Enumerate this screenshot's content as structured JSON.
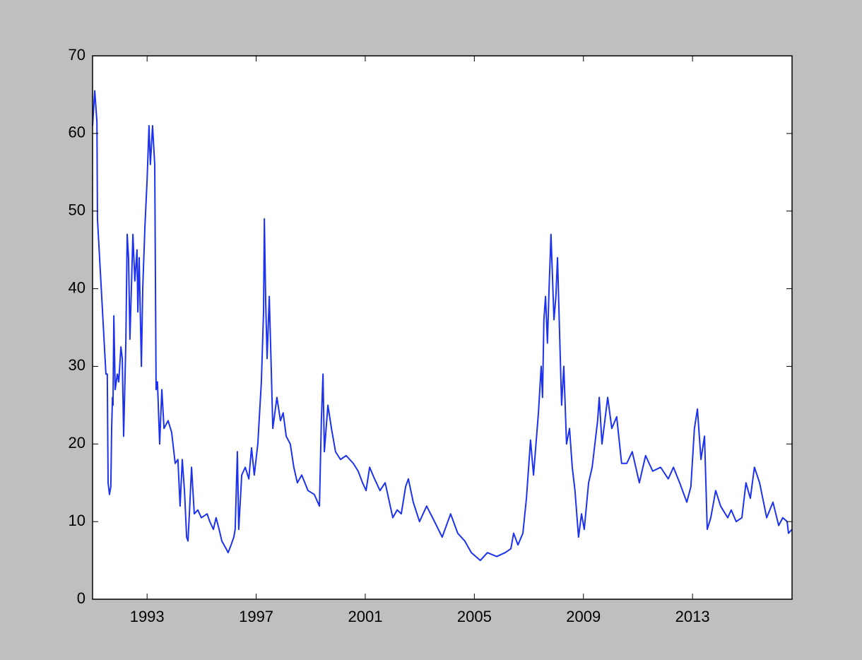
{
  "chart_data": {
    "type": "line",
    "x": [
      1991.0,
      1991.08,
      1991.16,
      1991.18,
      1991.49,
      1991.54,
      1991.57,
      1991.62,
      1991.67,
      1991.7,
      1991.73,
      1991.75,
      1991.78,
      1991.83,
      1991.91,
      1991.96,
      1992.04,
      1992.09,
      1992.14,
      1992.22,
      1992.27,
      1992.32,
      1992.37,
      1992.48,
      1992.55,
      1992.63,
      1992.66,
      1992.71,
      1992.79,
      1992.84,
      1992.92,
      1993.0,
      1993.07,
      1993.12,
      1993.2,
      1993.28,
      1993.33,
      1993.38,
      1993.46,
      1993.54,
      1993.62,
      1993.77,
      1993.9,
      1994.03,
      1994.13,
      1994.21,
      1994.29,
      1994.37,
      1994.45,
      1994.5,
      1994.55,
      1994.63,
      1994.73,
      1994.86,
      1994.99,
      1995.2,
      1995.3,
      1995.43,
      1995.53,
      1995.64,
      1995.74,
      1995.9,
      1995.97,
      1996.08,
      1996.18,
      1996.23,
      1996.31,
      1996.36,
      1996.47,
      1996.6,
      1996.73,
      1996.83,
      1996.93,
      1997.06,
      1997.19,
      1997.27,
      1997.3,
      1997.35,
      1997.4,
      1997.48,
      1997.55,
      1997.61,
      1997.76,
      1997.89,
      1997.99,
      1998.1,
      1998.25,
      1998.38,
      1998.51,
      1998.67,
      1998.9,
      1999.13,
      1999.32,
      1999.39,
      1999.45,
      1999.5,
      1999.63,
      1999.76,
      1999.91,
      2000.09,
      2000.3,
      2000.56,
      2000.74,
      2000.9,
      2001.03,
      2001.16,
      2001.34,
      2001.54,
      2001.73,
      2002.01,
      2002.17,
      2002.32,
      2002.48,
      2002.58,
      2002.76,
      2002.99,
      2003.25,
      2003.54,
      2003.82,
      2004.13,
      2004.39,
      2004.65,
      2004.89,
      2005.22,
      2005.48,
      2005.82,
      2006.13,
      2006.34,
      2006.44,
      2006.6,
      2006.78,
      2006.91,
      2007.06,
      2007.17,
      2007.35,
      2007.45,
      2007.5,
      2007.55,
      2007.61,
      2007.68,
      2007.74,
      2007.81,
      2007.92,
      2007.99,
      2008.05,
      2008.12,
      2008.2,
      2008.28,
      2008.38,
      2008.49,
      2008.59,
      2008.69,
      2008.82,
      2008.93,
      2009.03,
      2009.19,
      2009.32,
      2009.52,
      2009.58,
      2009.68,
      2009.89,
      2010.04,
      2010.22,
      2010.4,
      2010.59,
      2010.79,
      2011.05,
      2011.28,
      2011.54,
      2011.83,
      2012.11,
      2012.3,
      2012.53,
      2012.79,
      2012.94,
      2013.07,
      2013.18,
      2013.31,
      2013.44,
      2013.54,
      2013.67,
      2013.85,
      2014.03,
      2014.29,
      2014.42,
      2014.6,
      2014.81,
      2014.96,
      2015.12,
      2015.27,
      2015.46,
      2015.72,
      2015.95,
      2016.16,
      2016.31,
      2016.47,
      2016.52,
      2016.65
    ],
    "values": [
      61,
      65.5,
      61.5,
      49,
      29,
      29,
      15,
      13.5,
      14.5,
      22,
      26,
      25,
      36.5,
      27,
      29,
      28,
      32.5,
      31,
      21,
      33,
      47,
      44,
      33.5,
      47,
      41,
      45,
      37,
      44,
      30,
      40,
      48,
      54,
      61,
      56,
      61,
      56,
      27,
      28,
      20,
      27,
      22,
      23,
      21.5,
      17.5,
      18,
      12,
      18,
      14,
      8,
      7.5,
      11,
      17,
      11,
      11.5,
      10.5,
      11,
      10,
      9,
      10.5,
      9,
      7.5,
      6.5,
      6,
      7,
      8,
      9,
      19,
      9,
      16,
      17,
      15.5,
      19.5,
      16,
      20,
      28,
      37,
      49,
      38,
      31,
      39,
      30,
      22,
      26,
      23,
      24,
      21,
      20,
      17,
      15,
      16,
      14,
      13.5,
      12,
      23,
      29,
      19,
      25,
      22,
      19,
      18,
      18.5,
      17.5,
      16.5,
      15,
      14,
      17,
      15.5,
      14,
      15,
      10.5,
      11.5,
      11,
      14.5,
      15.5,
      12.5,
      10,
      12,
      10,
      8,
      11,
      8.5,
      7.5,
      6,
      5,
      6,
      5.5,
      6,
      6.5,
      8.5,
      7,
      8.5,
      13,
      20.5,
      16,
      24,
      30,
      26,
      36,
      39,
      33,
      40,
      47,
      36,
      39,
      44,
      35,
      25,
      30,
      20,
      22,
      17,
      14,
      8,
      11,
      9,
      15,
      17,
      23,
      26,
      20,
      26,
      22,
      23.5,
      17.5,
      17.5,
      19,
      15,
      18.5,
      16.5,
      17,
      15.5,
      17,
      15,
      12.5,
      14.5,
      22,
      24.5,
      18,
      21,
      9,
      10.5,
      14,
      12,
      10.5,
      11.5,
      10,
      10.5,
      15,
      13,
      17,
      15,
      10.5,
      12.5,
      9.5,
      10.5,
      10,
      8.5,
      9
    ],
    "color": "#1c32ee",
    "xlim": [
      1991.0,
      2016.65
    ],
    "xticks": [
      1993,
      1997,
      2001,
      2005,
      2009,
      2013
    ],
    "ylim": [
      0,
      70
    ],
    "yticks": [
      0,
      10,
      20,
      30,
      40,
      50,
      60,
      70
    ]
  }
}
